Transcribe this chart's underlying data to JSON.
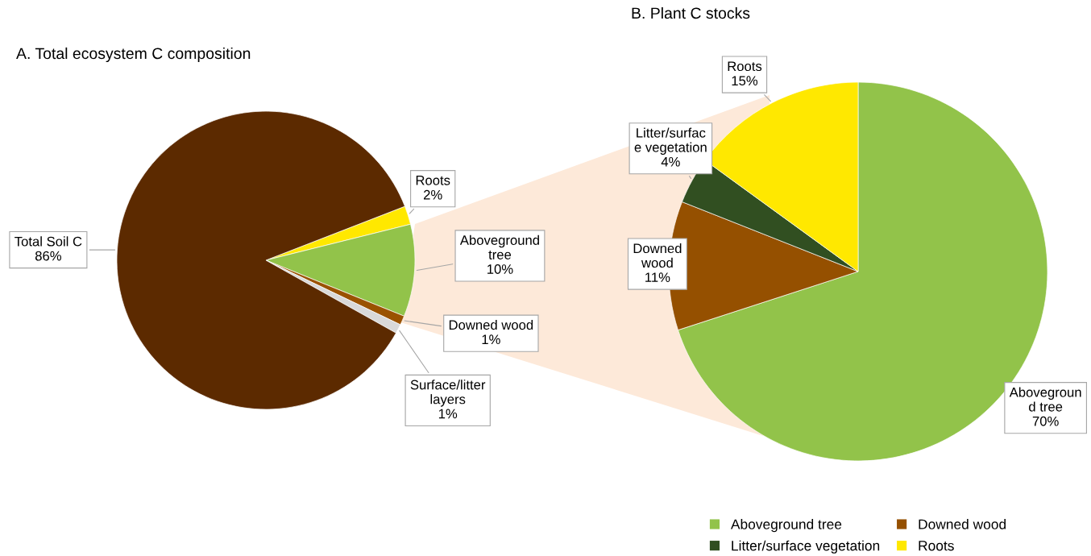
{
  "chart_data": [
    {
      "type": "pie",
      "title": "A. Total ecosystem C composition",
      "categories": [
        "Roots",
        "Aboveground tree",
        "Downed wood",
        "Surface/litter layers",
        "Total Soil C"
      ],
      "values": [
        2,
        10,
        1,
        1,
        86
      ],
      "colors": [
        "#ffe800",
        "#92c34a",
        "#9a5200",
        "#d9d9d9",
        "#5c2a00"
      ],
      "value_labels": [
        "2%",
        "10%",
        "1%",
        "1%",
        "86%"
      ]
    },
    {
      "type": "pie",
      "title": "B. Plant C stocks",
      "categories": [
        "Aboveground tree",
        "Downed wood",
        "Litter/surface vegetation",
        "Roots"
      ],
      "values": [
        70,
        11,
        4,
        15
      ],
      "colors": [
        "#92c34a",
        "#955000",
        "#314f21",
        "#ffe800"
      ],
      "value_labels": [
        "70%",
        "11%",
        "4%",
        "15%"
      ],
      "legend": "bottom"
    }
  ]
}
